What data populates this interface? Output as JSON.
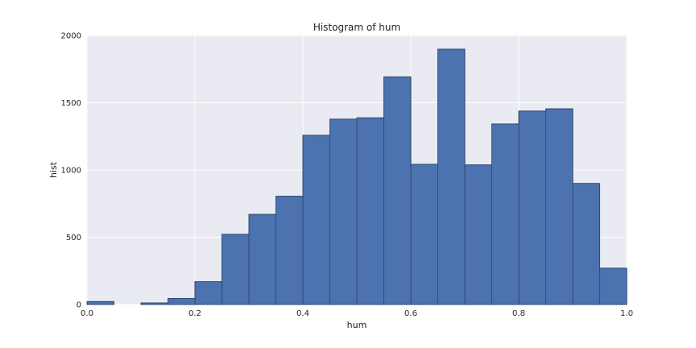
{
  "chart_data": {
    "type": "bar",
    "title": "Histogram of hum",
    "xlabel": "hum",
    "ylabel": "hist",
    "xlim": [
      0,
      1
    ],
    "ylim": [
      0,
      2000
    ],
    "xticks": [
      "0.0",
      "0.2",
      "0.4",
      "0.6",
      "0.8",
      "1.0"
    ],
    "xtick_values": [
      0,
      0.2,
      0.4,
      0.6,
      0.8,
      1.0
    ],
    "yticks": [
      "0",
      "500",
      "1000",
      "1500",
      "2000"
    ],
    "ytick_values": [
      0,
      500,
      1000,
      1500,
      2000
    ],
    "bin_width": 0.05,
    "bins": [
      {
        "x0": 0.0,
        "x1": 0.05,
        "count": 22
      },
      {
        "x0": 0.05,
        "x1": 0.1,
        "count": 0
      },
      {
        "x0": 0.1,
        "x1": 0.15,
        "count": 12
      },
      {
        "x0": 0.15,
        "x1": 0.2,
        "count": 45
      },
      {
        "x0": 0.2,
        "x1": 0.25,
        "count": 170
      },
      {
        "x0": 0.25,
        "x1": 0.3,
        "count": 522
      },
      {
        "x0": 0.3,
        "x1": 0.35,
        "count": 670
      },
      {
        "x0": 0.35,
        "x1": 0.4,
        "count": 805
      },
      {
        "x0": 0.4,
        "x1": 0.45,
        "count": 1258
      },
      {
        "x0": 0.45,
        "x1": 0.5,
        "count": 1378
      },
      {
        "x0": 0.5,
        "x1": 0.55,
        "count": 1388
      },
      {
        "x0": 0.55,
        "x1": 0.6,
        "count": 1692
      },
      {
        "x0": 0.6,
        "x1": 0.65,
        "count": 1042
      },
      {
        "x0": 0.65,
        "x1": 0.7,
        "count": 1898
      },
      {
        "x0": 0.7,
        "x1": 0.75,
        "count": 1038
      },
      {
        "x0": 0.75,
        "x1": 0.8,
        "count": 1342
      },
      {
        "x0": 0.8,
        "x1": 0.85,
        "count": 1438
      },
      {
        "x0": 0.85,
        "x1": 0.9,
        "count": 1455
      },
      {
        "x0": 0.9,
        "x1": 0.95,
        "count": 900
      },
      {
        "x0": 0.95,
        "x1": 1.0,
        "count": 270
      }
    ],
    "grid": true,
    "colors": {
      "bar_fill": "#4c72b0",
      "bar_edge": "#2f4a73",
      "plot_background": "#eaeaf2",
      "grid": "#ffffff"
    }
  }
}
